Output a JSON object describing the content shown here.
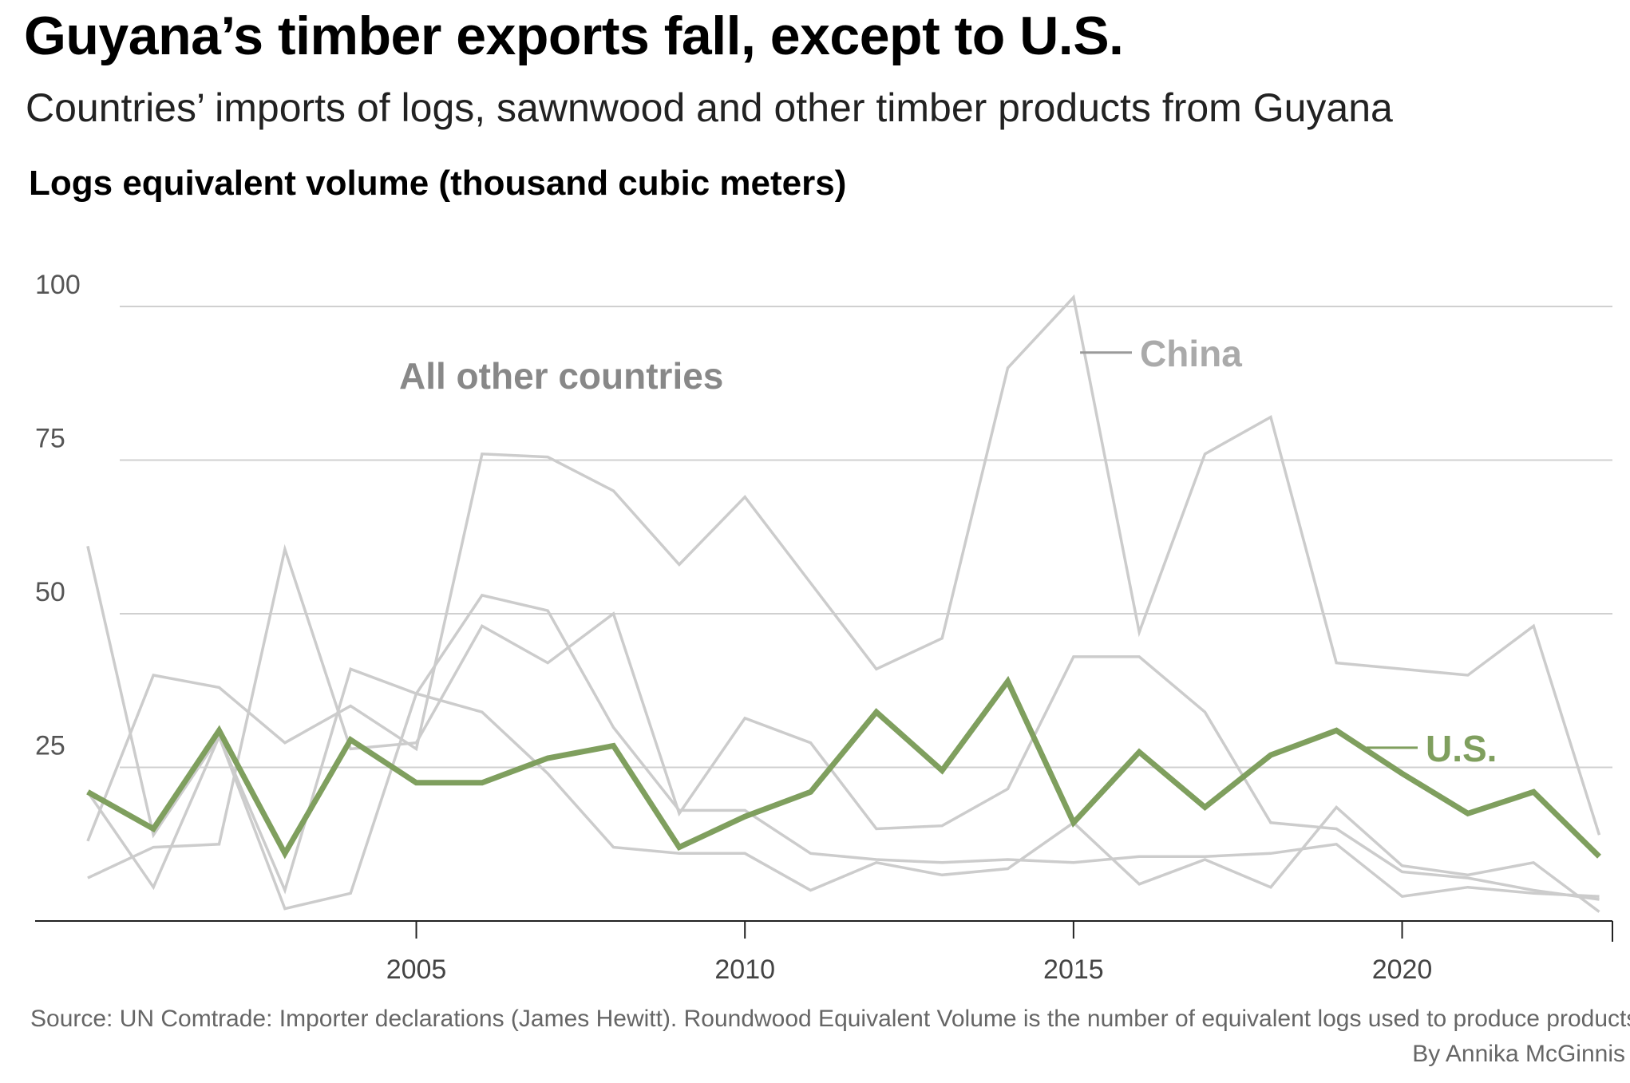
{
  "title": "Guyana’s timber exports fall, except to U.S.",
  "subtitle": "Countries’ imports of logs, sawnwood and other timber products from Guyana",
  "footer": {
    "source": "Source: UN Comtrade: Importer declarations (James Hewitt). Roundwood Equivalent Volume is the number of equivalent logs used to produce products.",
    "byline": "By Annika McGinnis"
  },
  "colors": {
    "us": "#7f9f5e",
    "others": "#cccccc",
    "grid": "#d0d0d0",
    "axis": "#222222",
    "label_gray": "#888888",
    "china_label": "#aaaaaa"
  },
  "chart_data": {
    "type": "line",
    "ylabel": "Logs equivalent volume (thousand cubic meters)",
    "xlabel": "",
    "x": [
      2000,
      2001,
      2002,
      2003,
      2004,
      2005,
      2006,
      2007,
      2008,
      2009,
      2010,
      2011,
      2012,
      2013,
      2014,
      2015,
      2016,
      2017,
      2018,
      2019,
      2020,
      2021,
      2022,
      2023
    ],
    "xlim": [
      1999.2,
      2023.2
    ],
    "ylim": [
      0,
      100
    ],
    "x_ticks": [
      2005,
      2010,
      2015,
      2020
    ],
    "y_ticks": [
      25,
      50,
      75,
      100
    ],
    "grid": true,
    "annotations": {
      "others_group": "All other countries"
    },
    "series": [
      {
        "name": "China",
        "highlight": false,
        "values": [
          13,
          40,
          38,
          29,
          35,
          28,
          76,
          75.5,
          70,
          58,
          69,
          55,
          41,
          46,
          90,
          101.5,
          47,
          76,
          82,
          42,
          41,
          40,
          48,
          14
        ]
      },
      {
        "name": "",
        "highlight": false,
        "values": [
          61,
          14,
          30,
          5,
          41,
          37,
          34,
          24,
          12,
          11,
          11,
          5,
          9.5,
          7.5,
          8.5,
          16,
          6,
          10,
          5.5,
          18.5,
          9,
          7.5,
          9.5,
          1.5
        ]
      },
      {
        "name": "",
        "highlight": false,
        "values": [
          21,
          5.5,
          30,
          2,
          4.5,
          37,
          53,
          50.5,
          31.5,
          18,
          18,
          11,
          10,
          9.5,
          10,
          9.5,
          10.5,
          10.5,
          11,
          12.5,
          4,
          5.5,
          4.5,
          4
        ]
      },
      {
        "name": "",
        "highlight": false,
        "values": [
          7,
          12,
          12.5,
          60.5,
          28,
          29,
          48,
          42,
          50,
          17.5,
          33,
          29,
          15,
          15.5,
          21.5,
          43,
          43,
          34,
          16,
          15,
          8,
          7,
          5,
          3.5
        ]
      },
      {
        "name": "U.S.",
        "highlight": true,
        "values": [
          21,
          15,
          31,
          11,
          29.5,
          22.5,
          22.5,
          26.5,
          28.5,
          12,
          17,
          21,
          34,
          24.5,
          39,
          16,
          27.5,
          18.5,
          27,
          31,
          24,
          17.5,
          21,
          10.5
        ]
      }
    ]
  }
}
